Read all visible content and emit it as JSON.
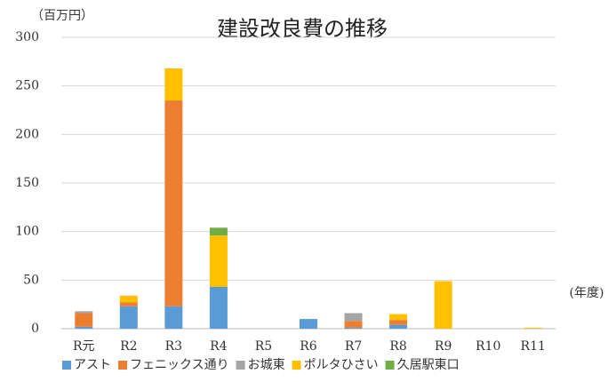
{
  "chart_data": {
    "type": "stacked_bar",
    "title": "建設改良費の推移",
    "y_label": "（百万円）",
    "x_label": "(年度)",
    "categories": [
      "R元",
      "R2",
      "R3",
      "R4",
      "R5",
      "R6",
      "R7",
      "R8",
      "R9",
      "R10",
      "R11"
    ],
    "series": [
      {
        "name": "アスト",
        "color": "#5b9bd5",
        "values": [
          2,
          23,
          23,
          43,
          0,
          10,
          1,
          4,
          0,
          0,
          0
        ]
      },
      {
        "name": "フェニックス通り",
        "color": "#ed7d31",
        "values": [
          14,
          4,
          212,
          0,
          0,
          0,
          7,
          5,
          0,
          0,
          0
        ]
      },
      {
        "name": "お城東",
        "color": "#a5a5a5",
        "values": [
          2,
          0,
          0,
          0,
          0,
          0,
          8,
          0,
          0,
          0,
          0
        ]
      },
      {
        "name": "ポルタひさい",
        "color": "#ffc000",
        "values": [
          0,
          7,
          33,
          53,
          0,
          0,
          0,
          6,
          49,
          0,
          1
        ]
      },
      {
        "name": "久居駅東口",
        "color": "#70ad47",
        "values": [
          0,
          0,
          0,
          8,
          0,
          0,
          0,
          0,
          0,
          0,
          0
        ]
      }
    ],
    "ylim": [
      0,
      300
    ],
    "yticks": [
      0,
      50,
      100,
      150,
      200,
      250,
      300
    ],
    "grid": true
  }
}
